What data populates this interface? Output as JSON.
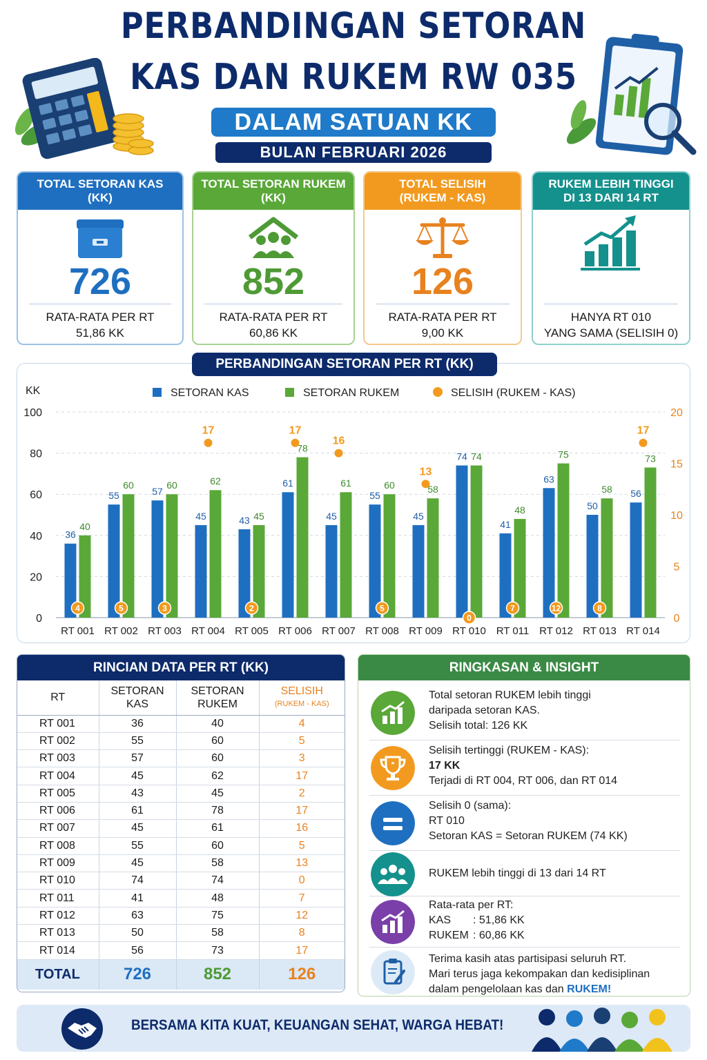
{
  "header": {
    "title_line1": "PERBANDINGAN SETORAN",
    "title_line2": "KAS DAN RUKEM RW 035",
    "subtitle": "DALAM SATUAN KK",
    "month": "BULAN FEBRUARI 2026"
  },
  "cards": [
    {
      "title1": "TOTAL SETORAN KAS",
      "title2": "(KK)",
      "value": "726",
      "foot1": "RATA-RATA PER RT",
      "foot2": "51,86 KK",
      "color": "#1f6fc0",
      "icon": "cash-box-icon"
    },
    {
      "title1": "TOTAL SETORAN RUKEM",
      "title2": "(KK)",
      "value": "852",
      "foot1": "RATA-RATA PER RT",
      "foot2": "60,86 KK",
      "color": "#5aa838",
      "icon": "community-home-icon"
    },
    {
      "title1": "TOTAL SELISIH",
      "title2": "(RUKEM - KAS)",
      "value": "126",
      "foot1": "RATA-RATA PER RT",
      "foot2": "9,00 KK",
      "color": "#f29a1f",
      "icon": "balance-scale-icon"
    },
    {
      "title1": "RUKEM LEBIH TINGGI",
      "title2": "DI 13 DARI 14 RT",
      "value": "",
      "foot1": "HANYA RT 010",
      "foot2": "YANG SAMA (SELISIH 0)",
      "color": "#14918d",
      "icon": "growth-chart-icon"
    }
  ],
  "chart_data": {
    "type": "bar",
    "title": "PERBANDINGAN SETORAN PER RT (KK)",
    "ylabel": "KK",
    "ylim": [
      0,
      100
    ],
    "y2lim": [
      0,
      20
    ],
    "yticks": [
      0,
      20,
      40,
      60,
      80,
      100
    ],
    "y2ticks": [
      0,
      5,
      10,
      15,
      20
    ],
    "legend_position": "top",
    "grid": true,
    "categories": [
      "RT 001",
      "RT 002",
      "RT 003",
      "RT 004",
      "RT 005",
      "RT 006",
      "RT 007",
      "RT 008",
      "RT 009",
      "RT 010",
      "RT 011",
      "RT 012",
      "RT 013",
      "RT 014"
    ],
    "series": [
      {
        "name": "SETORAN KAS",
        "type": "bar",
        "axis": "left",
        "color": "#1f6fc0",
        "values": [
          36,
          55,
          57,
          45,
          43,
          61,
          45,
          55,
          45,
          74,
          41,
          63,
          50,
          56
        ]
      },
      {
        "name": "SETORAN RUKEM",
        "type": "bar",
        "axis": "left",
        "color": "#5aa838",
        "values": [
          40,
          60,
          60,
          62,
          45,
          78,
          61,
          60,
          58,
          74,
          48,
          75,
          58,
          73
        ]
      },
      {
        "name": "SELISIH (RUKEM - KAS)",
        "type": "scatter",
        "axis": "right",
        "color": "#f29a1f",
        "values": [
          4,
          5,
          3,
          17,
          2,
          17,
          16,
          5,
          13,
          0,
          7,
          12,
          8,
          17
        ]
      }
    ]
  },
  "table": {
    "title": "RINCIAN DATA PER RT (KK)",
    "headers": {
      "rt": "RT",
      "kas1": "SETORAN",
      "kas2": "KAS",
      "rukem1": "SETORAN",
      "rukem2": "RUKEM",
      "selisih": "SELISIH",
      "selisih_sub": "(RUKEM - KAS)"
    },
    "rows": [
      [
        "RT 001",
        "36",
        "40",
        "4"
      ],
      [
        "RT 002",
        "55",
        "60",
        "5"
      ],
      [
        "RT 003",
        "57",
        "60",
        "3"
      ],
      [
        "RT 004",
        "45",
        "62",
        "17"
      ],
      [
        "RT 005",
        "43",
        "45",
        "2"
      ],
      [
        "RT 006",
        "61",
        "78",
        "17"
      ],
      [
        "RT 007",
        "45",
        "61",
        "16"
      ],
      [
        "RT 008",
        "55",
        "60",
        "5"
      ],
      [
        "RT 009",
        "45",
        "58",
        "13"
      ],
      [
        "RT 010",
        "74",
        "74",
        "0"
      ],
      [
        "RT 011",
        "41",
        "48",
        "7"
      ],
      [
        "RT 012",
        "63",
        "75",
        "12"
      ],
      [
        "RT 013",
        "50",
        "58",
        "8"
      ],
      [
        "RT 014",
        "56",
        "73",
        "17"
      ]
    ],
    "total": {
      "label": "TOTAL",
      "kas": "726",
      "rukem": "852",
      "selisih": "126"
    }
  },
  "insight": {
    "title": "RINGKASAN & INSIGHT",
    "i1": {
      "l1": "Total setoran RUKEM lebih tinggi",
      "l2": "daripada setoran KAS.",
      "l3": "Selisih total: 126 KK"
    },
    "i2": {
      "l1": "Selisih tertinggi (RUKEM - KAS):",
      "l2": "17 KK",
      "l3": "Terjadi di RT 004, RT 006, dan RT 014"
    },
    "i3": {
      "l1": "Selisih 0 (sama):",
      "l2": "RT 010",
      "l3": "Setoran KAS = Setoran RUKEM (74 KK)"
    },
    "i4": {
      "l1": "RUKEM lebih tinggi di 13 dari 14 RT"
    },
    "i5": {
      "l1": "Rata-rata per RT:",
      "l2a": "KAS",
      "l2b": ": 51,86 KK",
      "l3a": "RUKEM",
      "l3b": ": 60,86 KK"
    },
    "i6": {
      "l1": "Terima kasih atas partisipasi seluruh RT.",
      "l2": "Mari terus jaga kekompakan dan kedisiplinan",
      "l3a": "dalam pengelolaan kas dan",
      "l3b": "RUKEM",
      "l3c": "!"
    }
  },
  "footer": {
    "text": "BERSAMA KITA KUAT, KEUANGAN SEHAT, WARGA HEBAT!"
  }
}
